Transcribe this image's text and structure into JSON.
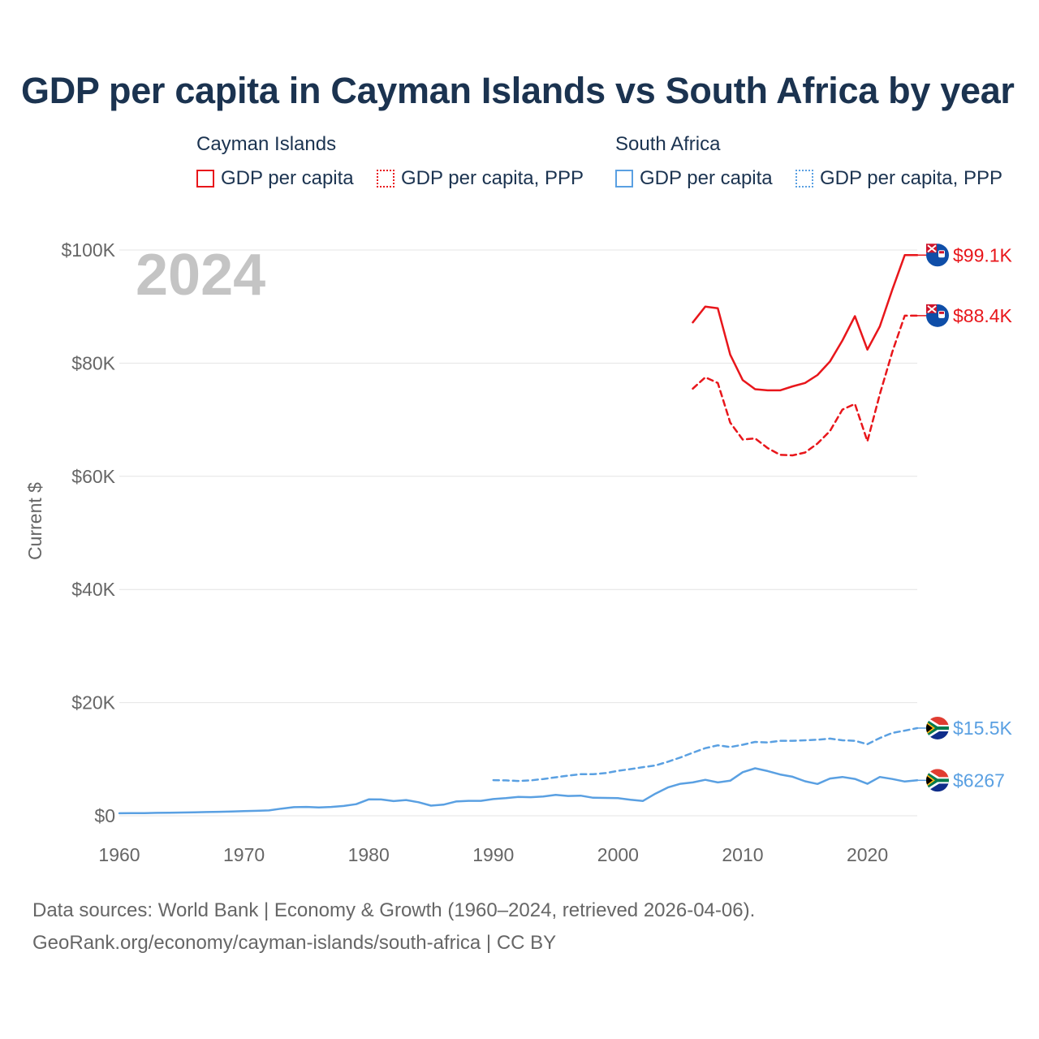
{
  "title": "GDP per capita in Cayman Islands vs South Africa by year",
  "legend": {
    "groups": [
      {
        "name": "Cayman Islands",
        "color": "#e8161b",
        "items": [
          {
            "label": "GDP per capita",
            "style": "solid"
          },
          {
            "label": "GDP per capita, PPP",
            "style": "dotted"
          }
        ]
      },
      {
        "name": "South Africa",
        "color": "#5aa0e2",
        "items": [
          {
            "label": "GDP per capita",
            "style": "solid"
          },
          {
            "label": "GDP per capita, PPP",
            "style": "dotted"
          }
        ]
      }
    ]
  },
  "year_watermark": "2024",
  "footer": {
    "line1": "Data sources: World Bank | Economy & Growth (1960–2024, retrieved 2026-04-06).",
    "line2": "GeoRank.org/economy/cayman-islands/south-africa | CC BY"
  },
  "chart_data": {
    "type": "line",
    "title": "GDP per capita in Cayman Islands vs South Africa by year",
    "ylabel": "Current $",
    "xlabel": "",
    "xlim": [
      1960,
      2024
    ],
    "ylim": [
      0,
      100000
    ],
    "x_ticks": [
      1960,
      1970,
      1980,
      1990,
      2000,
      2010,
      2020
    ],
    "x_tick_labels": [
      "1960",
      "1970",
      "1980",
      "1990",
      "2000",
      "2010",
      "2020"
    ],
    "y_ticks": [
      0,
      20000,
      40000,
      60000,
      80000,
      100000
    ],
    "y_tick_labels": [
      "$0",
      "$20K",
      "$40K",
      "$60K",
      "$80K",
      "$100K"
    ],
    "grid": true,
    "series": [
      {
        "name": "Cayman Islands GDP per capita",
        "country": "Cayman Islands",
        "color": "#e8161b",
        "dash": "solid",
        "end_label": "$99.1K",
        "x": [
          2006,
          2007,
          2008,
          2009,
          2010,
          2011,
          2012,
          2013,
          2014,
          2015,
          2016,
          2017,
          2018,
          2019,
          2020,
          2021,
          2022,
          2023,
          2024
        ],
        "values": [
          87200,
          90000,
          89700,
          81500,
          77000,
          75400,
          75200,
          75200,
          75900,
          76500,
          77900,
          80300,
          84000,
          88300,
          82400,
          86500,
          93000,
          99100,
          99100
        ]
      },
      {
        "name": "Cayman Islands GDP per capita, PPP",
        "country": "Cayman Islands",
        "color": "#e8161b",
        "dash": "dashed",
        "end_label": "$88.4K",
        "x": [
          2006,
          2007,
          2008,
          2009,
          2010,
          2011,
          2012,
          2013,
          2014,
          2015,
          2016,
          2017,
          2018,
          2019,
          2020,
          2021,
          2022,
          2023,
          2024
        ],
        "values": [
          75500,
          77500,
          76500,
          69500,
          66500,
          66700,
          65000,
          63800,
          63700,
          64200,
          65800,
          68000,
          71800,
          72800,
          66200,
          74500,
          82000,
          88400,
          88400
        ]
      },
      {
        "name": "South Africa GDP per capita",
        "country": "South Africa",
        "color": "#5aa0e2",
        "dash": "solid",
        "end_label": "$6267",
        "x": [
          1960,
          1961,
          1962,
          1963,
          1964,
          1965,
          1966,
          1967,
          1968,
          1969,
          1970,
          1971,
          1972,
          1973,
          1974,
          1975,
          1976,
          1977,
          1978,
          1979,
          1980,
          1981,
          1982,
          1983,
          1984,
          1985,
          1986,
          1987,
          1988,
          1989,
          1990,
          1991,
          1992,
          1993,
          1994,
          1995,
          1996,
          1997,
          1998,
          1999,
          2000,
          2001,
          2002,
          2003,
          2004,
          2005,
          2006,
          2007,
          2008,
          2009,
          2010,
          2011,
          2012,
          2013,
          2014,
          2015,
          2016,
          2017,
          2018,
          2019,
          2020,
          2021,
          2022,
          2023,
          2024
        ],
        "values": [
          440,
          460,
          480,
          510,
          550,
          580,
          620,
          660,
          700,
          760,
          820,
          880,
          940,
          1260,
          1520,
          1560,
          1470,
          1570,
          1730,
          2050,
          2900,
          2880,
          2600,
          2780,
          2400,
          1790,
          1960,
          2530,
          2640,
          2640,
          2950,
          3110,
          3330,
          3280,
          3400,
          3700,
          3500,
          3560,
          3180,
          3150,
          3120,
          2820,
          2620,
          3920,
          5000,
          5650,
          5900,
          6350,
          5900,
          6200,
          7700,
          8400,
          7900,
          7300,
          6900,
          6100,
          5630,
          6580,
          6860,
          6520,
          5650,
          6860,
          6500,
          6050,
          6267
        ]
      },
      {
        "name": "South Africa GDP per capita, PPP",
        "country": "South Africa",
        "color": "#5aa0e2",
        "dash": "dashed",
        "end_label": "$15.5K",
        "x": [
          1990,
          1991,
          1992,
          1993,
          1994,
          1995,
          1996,
          1997,
          1998,
          1999,
          2000,
          2001,
          2002,
          2003,
          2004,
          2005,
          2006,
          2007,
          2008,
          2009,
          2010,
          2011,
          2012,
          2013,
          2014,
          2015,
          2016,
          2017,
          2018,
          2019,
          2020,
          2021,
          2022,
          2023,
          2024
        ],
        "values": [
          6300,
          6250,
          6150,
          6250,
          6500,
          6800,
          7100,
          7350,
          7350,
          7550,
          7950,
          8250,
          8600,
          8900,
          9550,
          10300,
          11150,
          11950,
          12450,
          12150,
          12550,
          13050,
          12950,
          13250,
          13250,
          13350,
          13450,
          13650,
          13350,
          13250,
          12650,
          13750,
          14650,
          15050,
          15500
        ]
      }
    ]
  }
}
